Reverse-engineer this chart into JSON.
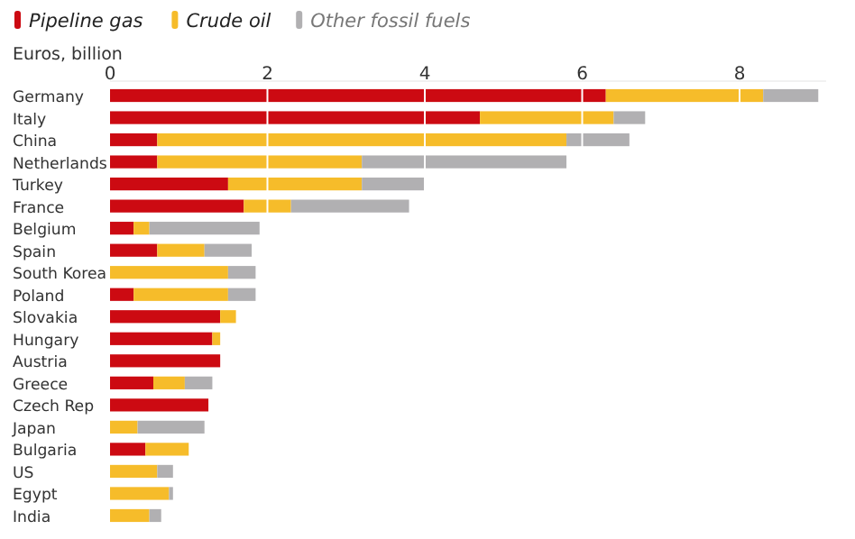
{
  "chart_data": {
    "type": "bar",
    "orientation": "horizontal",
    "stacked": true,
    "xlabel": "Euros, billion",
    "legend": "top left",
    "grid": "x",
    "categories": [
      "Germany",
      "Italy",
      "China",
      "Netherlands",
      "Turkey",
      "France",
      "Belgium",
      "Spain",
      "South Korea",
      "Poland",
      "Slovakia",
      "Hungary",
      "Austria",
      "Greece",
      "Czech Rep",
      "Japan",
      "Bulgaria",
      "US",
      "Egypt",
      "India"
    ],
    "xlim": [
      0,
      9.1
    ],
    "xticks": [
      0,
      2,
      4,
      6,
      8
    ],
    "series": [
      {
        "name": "Pipeline gas",
        "color": "#cc0a12",
        "values": [
          6.3,
          4.7,
          0.6,
          0.6,
          1.5,
          1.7,
          0.3,
          0.6,
          0,
          0.3,
          1.4,
          1.3,
          1.4,
          0.55,
          1.25,
          0,
          0.45,
          0,
          0,
          0
        ]
      },
      {
        "name": "Crude oil",
        "color": "#f6bc2a",
        "values": [
          2.0,
          1.7,
          5.2,
          2.6,
          1.7,
          0.6,
          0.2,
          0.6,
          1.5,
          1.2,
          0.2,
          0.1,
          0,
          0.4,
          0,
          0.35,
          0.55,
          0.6,
          0.75,
          0.5
        ]
      },
      {
        "name": "Other fossil fuels",
        "color": "#b1b0b2",
        "values": [
          0.7,
          0.4,
          0.8,
          2.6,
          0.8,
          1.5,
          1.4,
          0.6,
          0.35,
          0.35,
          0,
          0,
          0,
          0.35,
          0,
          0.85,
          0,
          0.2,
          0.05,
          0.15
        ]
      }
    ]
  }
}
